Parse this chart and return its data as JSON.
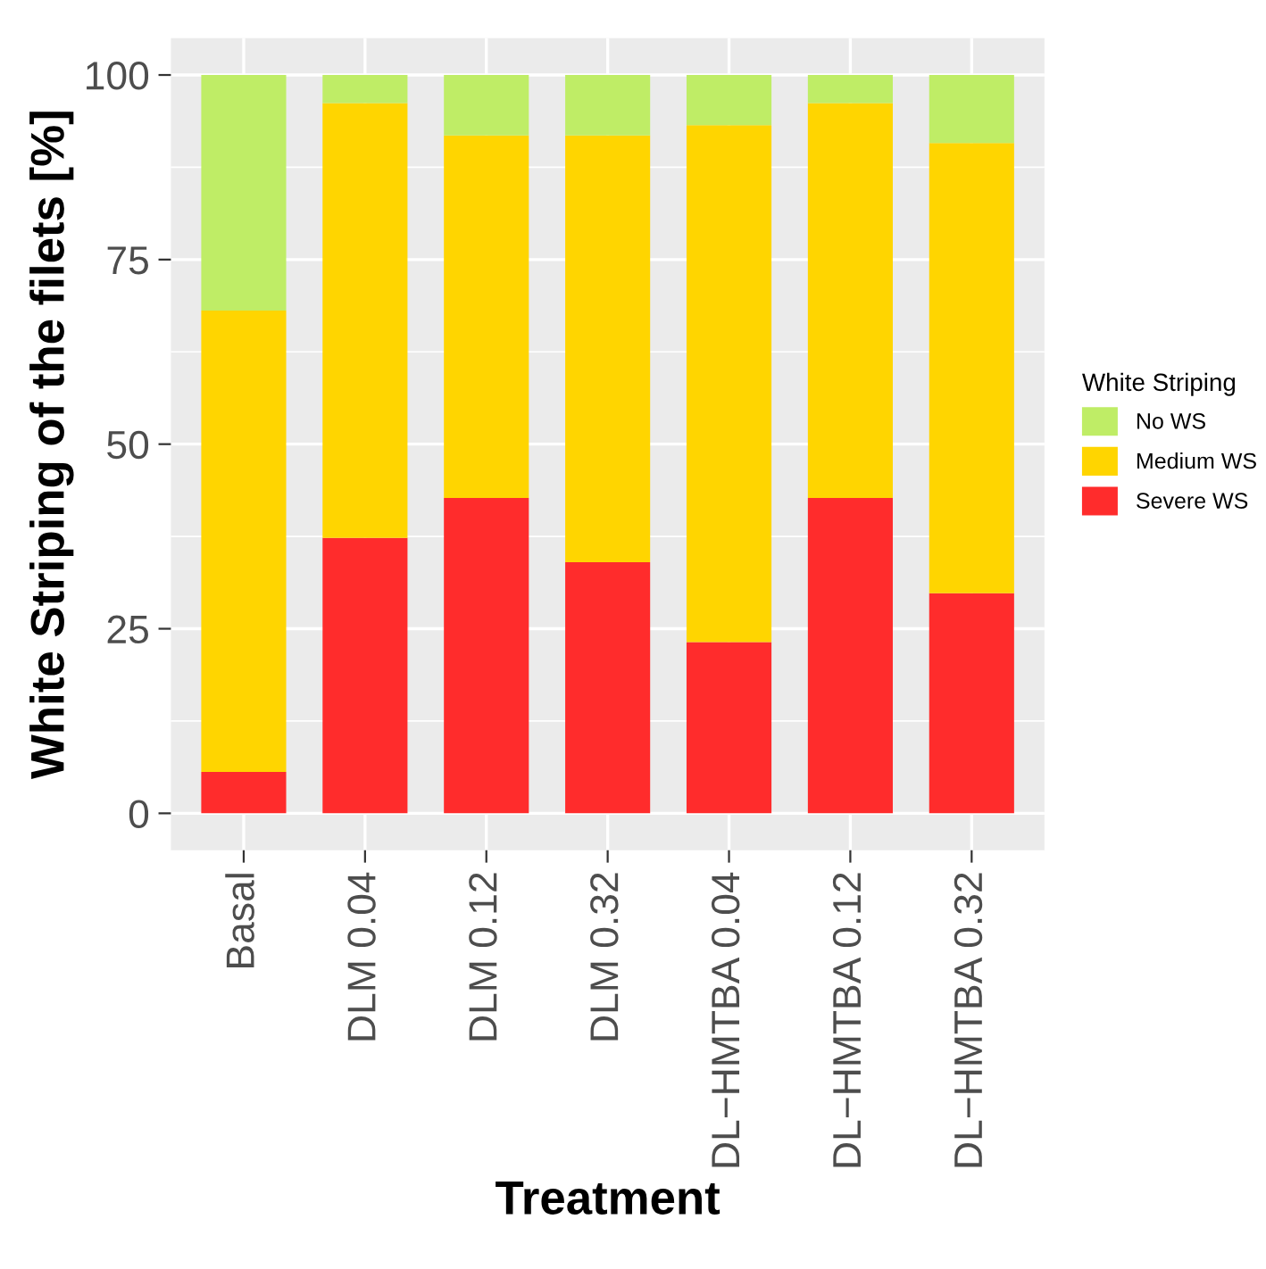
{
  "chart_data": {
    "type": "bar",
    "stacked": true,
    "xlabel": "Treatment",
    "ylabel": "White Striping of the filets [%]",
    "legend_title": "White Striping",
    "categories": [
      "Basal",
      "DLM 0.04",
      "DLM 0.12",
      "DLM 0.32",
      "DL−HMTBA 0.04",
      "DL−HMTBA 0.12",
      "DL−HMTBA 0.32"
    ],
    "series": [
      {
        "name": "Severe WS",
        "color": "#ff2c2c",
        "values": [
          5.6,
          37.3,
          42.7,
          34.0,
          23.2,
          42.7,
          29.8
        ]
      },
      {
        "name": "Medium WS",
        "color": "#ffd500",
        "values": [
          62.5,
          58.9,
          49.1,
          57.8,
          70.0,
          53.5,
          61.0
        ]
      },
      {
        "name": "No WS",
        "color": "#bfed66",
        "values": [
          31.9,
          3.8,
          8.2,
          8.2,
          6.8,
          3.8,
          9.2
        ]
      }
    ],
    "ylim": [
      -5,
      105
    ],
    "yticks": [
      0,
      25,
      50,
      75,
      100
    ],
    "grid": true,
    "legend": "right"
  }
}
